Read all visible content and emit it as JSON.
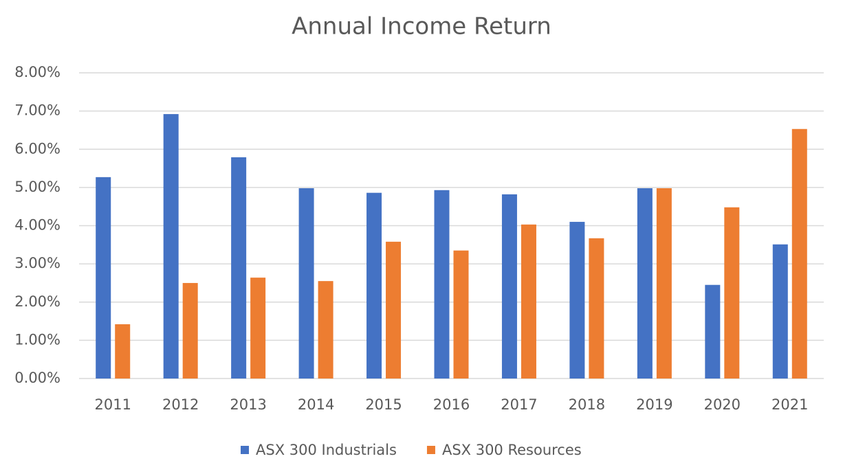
{
  "chart_data": {
    "type": "bar",
    "title": "Annual Income Return",
    "categories": [
      "2011",
      "2012",
      "2013",
      "2014",
      "2015",
      "2016",
      "2017",
      "2018",
      "2019",
      "2020",
      "2021"
    ],
    "series": [
      {
        "name": "ASX 300 Industrials",
        "color": "#4472c4",
        "values": [
          5.27,
          6.92,
          5.79,
          4.98,
          4.86,
          4.93,
          4.82,
          4.1,
          4.98,
          2.45,
          3.51
        ]
      },
      {
        "name": "ASX 300 Resources",
        "color": "#ed7d31",
        "values": [
          1.42,
          2.5,
          2.64,
          2.55,
          3.58,
          3.35,
          4.03,
          3.67,
          4.98,
          4.48,
          6.53
        ]
      }
    ],
    "ylim": [
      0,
      8
    ],
    "yticks": [
      {
        "value": 0,
        "label": "0.00%"
      },
      {
        "value": 1,
        "label": "1.00%"
      },
      {
        "value": 2,
        "label": "2.00%"
      },
      {
        "value": 3,
        "label": "3.00%"
      },
      {
        "value": 4,
        "label": "4.00%"
      },
      {
        "value": 5,
        "label": "5.00%"
      },
      {
        "value": 6,
        "label": "6.00%"
      },
      {
        "value": 7,
        "label": "7.00%"
      },
      {
        "value": 8,
        "label": "8.00%"
      }
    ],
    "grid": true,
    "legend": "bottom"
  }
}
